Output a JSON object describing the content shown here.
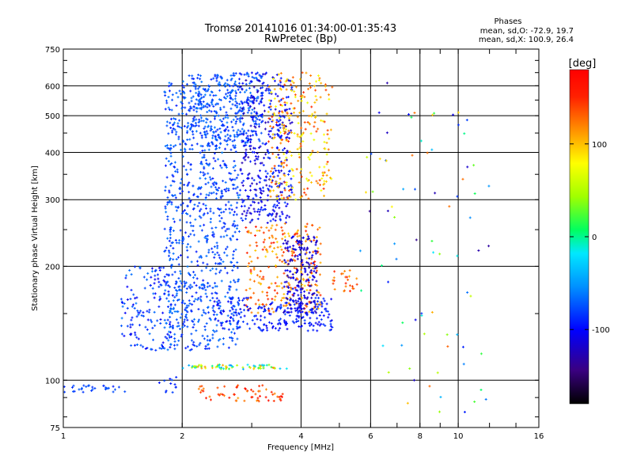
{
  "chart_data": {
    "type": "scatter",
    "title": "Tromsø 20141016 01:34:00-01:35:43",
    "subtitle": "RwPretec (Bp)",
    "xlabel": "Frequency [MHz]",
    "ylabel": "Stationary phase Virtual Height [km]",
    "x_scale": "log",
    "y_scale": "log",
    "xlim": [
      1,
      16
    ],
    "ylim": [
      75,
      750
    ],
    "x_ticks": [
      1,
      2,
      4,
      6,
      8,
      10,
      16
    ],
    "y_ticks": [
      75,
      100,
      200,
      300,
      400,
      500,
      600,
      750
    ],
    "grid": true,
    "stats": {
      "header": "Phases",
      "line_o": "mean, sd,O: -72.9, 19.7",
      "line_x": "mean, sd,X: 100.9, 26.4"
    },
    "colorbar": {
      "label": "[deg]",
      "range": [
        -180,
        180
      ],
      "ticks": [
        100,
        0,
        -100
      ],
      "placement": "right"
    },
    "clusters": [
      {
        "f": [
          1.0,
          1.45
        ],
        "h": [
          93,
          97
        ],
        "phase": [
          -95,
          -70
        ],
        "n": 30
      },
      {
        "f": [
          1.75,
          1.95
        ],
        "h": [
          92,
          102
        ],
        "phase": [
          -95,
          -75
        ],
        "n": 12
      },
      {
        "f": [
          2.0,
          3.7
        ],
        "h": [
          107,
          110
        ],
        "phase": [
          -60,
          120
        ],
        "n": 70
      },
      {
        "f": [
          2.2,
          3.6
        ],
        "h": [
          88,
          97
        ],
        "phase": [
          110,
          170
        ],
        "n": 60
      },
      {
        "f": [
          1.4,
          1.9
        ],
        "h": [
          120,
          200
        ],
        "phase": [
          -110,
          -60
        ],
        "n": 150
      },
      {
        "f": [
          1.8,
          2.8
        ],
        "h": [
          120,
          640
        ],
        "phase": [
          -95,
          -60
        ],
        "n": 900
      },
      {
        "f": [
          2.1,
          3.2
        ],
        "h": [
          420,
          650
        ],
        "phase": [
          -90,
          -60
        ],
        "n": 280
      },
      {
        "f": [
          2.8,
          3.8
        ],
        "h": [
          260,
          650
        ],
        "phase": [
          -130,
          -80
        ],
        "n": 400
      },
      {
        "f": [
          2.9,
          4.5
        ],
        "h": [
          150,
          260
        ],
        "phase": [
          90,
          160
        ],
        "n": 260
      },
      {
        "f": [
          3.3,
          4.8
        ],
        "h": [
          300,
          650
        ],
        "phase": [
          70,
          150
        ],
        "n": 260
      },
      {
        "f": [
          3.6,
          4.4
        ],
        "h": [
          150,
          240
        ],
        "phase": [
          -130,
          -100
        ],
        "n": 200
      },
      {
        "f": [
          2.4,
          4.8
        ],
        "h": [
          135,
          165
        ],
        "phase": [
          -110,
          -80
        ],
        "n": 220
      },
      {
        "f": [
          4.8,
          5.6
        ],
        "h": [
          170,
          200
        ],
        "phase": [
          110,
          160
        ],
        "n": 25
      },
      {
        "f": [
          5.5,
          12.0
        ],
        "h": [
          80,
          620
        ],
        "phase": [
          -140,
          130
        ],
        "n": 80
      }
    ]
  }
}
